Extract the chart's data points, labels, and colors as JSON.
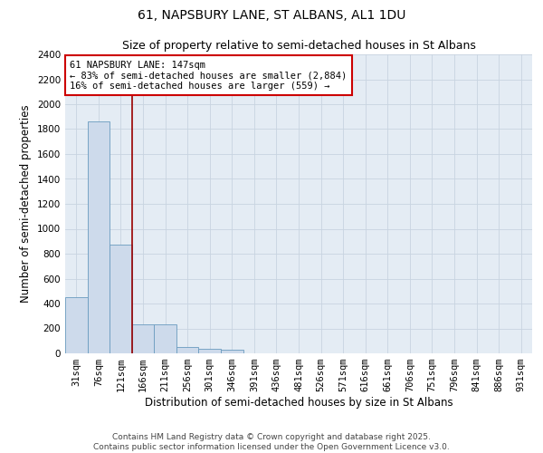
{
  "title_line1": "61, NAPSBURY LANE, ST ALBANS, AL1 1DU",
  "title_line2": "Size of property relative to semi-detached houses in St Albans",
  "xlabel": "Distribution of semi-detached houses by size in St Albans",
  "ylabel": "Number of semi-detached properties",
  "categories": [
    "31sqm",
    "76sqm",
    "121sqm",
    "166sqm",
    "211sqm",
    "256sqm",
    "301sqm",
    "346sqm",
    "391sqm",
    "436sqm",
    "481sqm",
    "526sqm",
    "571sqm",
    "616sqm",
    "661sqm",
    "706sqm",
    "751sqm",
    "796sqm",
    "841sqm",
    "886sqm",
    "931sqm"
  ],
  "values": [
    450,
    1860,
    870,
    235,
    235,
    50,
    40,
    28,
    0,
    0,
    0,
    0,
    0,
    0,
    0,
    0,
    0,
    0,
    0,
    0,
    0
  ],
  "bar_color": "#cddaeb",
  "bar_edge_color": "#6a9bbf",
  "vline_x_idx": 2.5,
  "vline_color": "#990000",
  "annotation_text": "61 NAPSBURY LANE: 147sqm\n← 83% of semi-detached houses are smaller (2,884)\n16% of semi-detached houses are larger (559) →",
  "annotation_box_color": "#ffffff",
  "annotation_box_edge": "#cc0000",
  "ylim": [
    0,
    2400
  ],
  "yticks": [
    0,
    200,
    400,
    600,
    800,
    1000,
    1200,
    1400,
    1600,
    1800,
    2000,
    2200,
    2400
  ],
  "grid_color": "#c8d4e0",
  "bg_color": "#e4ecf4",
  "footer": "Contains HM Land Registry data © Crown copyright and database right 2025.\nContains public sector information licensed under the Open Government Licence v3.0.",
  "title_fontsize": 10,
  "subtitle_fontsize": 9,
  "axis_label_fontsize": 8.5,
  "tick_fontsize": 7.5,
  "annotation_fontsize": 7.5,
  "footer_fontsize": 6.5
}
